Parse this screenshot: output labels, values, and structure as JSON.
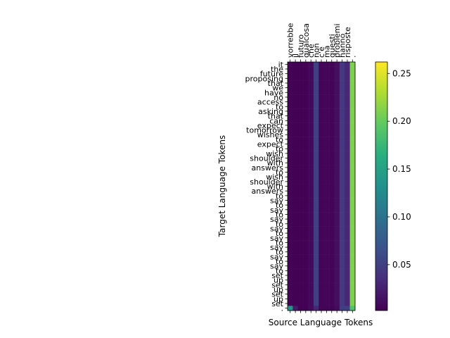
{
  "chart_data": {
    "type": "heatmap",
    "title": "",
    "xlabel": "Source Language Tokens",
    "ylabel": "Target Language Tokens",
    "x_tokens": [
      "vorrebbe",
      "il",
      "futuro",
      "qualcosa",
      "che",
      "non",
      "c'è",
      "ma",
      "questi",
      "problemi",
      "hanno",
      "risposte",
      "."
    ],
    "y_tokens": [
      "it",
      "the",
      "future",
      "proposing",
      "that",
      "we",
      "have",
      "no",
      "access",
      "to",
      "asking",
      "that",
      "can",
      "expect",
      "tomorrow",
      "wishes",
      "to",
      "expect",
      "to",
      "wish",
      "shoulder",
      "with",
      "answers",
      "to",
      "wish",
      "shoulder",
      "with",
      "answers",
      "to",
      "say",
      "to",
      "say",
      "to",
      "say",
      "to",
      "say",
      "to",
      "say",
      "to",
      "say",
      "to",
      "say",
      "to",
      "say",
      "to",
      "set",
      "up",
      "set",
      "up",
      "set",
      "up",
      "set",
      "."
    ],
    "column_weights": [
      0.004,
      0.003,
      0.003,
      0.003,
      0.008,
      0.05,
      0.005,
      0.006,
      0.005,
      0.012,
      0.045,
      0.03,
      0.21
    ],
    "last_row_weights": [
      0.14,
      0.02,
      0.003,
      0.003,
      0.01,
      0.03,
      0.005,
      0.005,
      0.004,
      0.01,
      0.05,
      0.05,
      0.19
    ],
    "colorbar": {
      "colormap": "viridis",
      "min": 0.002,
      "max": 0.262,
      "ticks": [
        0.05,
        0.1,
        0.15,
        0.2,
        0.25
      ],
      "tick_labels": [
        "0.05",
        "0.10",
        "0.15",
        "0.20",
        "0.25"
      ]
    }
  }
}
